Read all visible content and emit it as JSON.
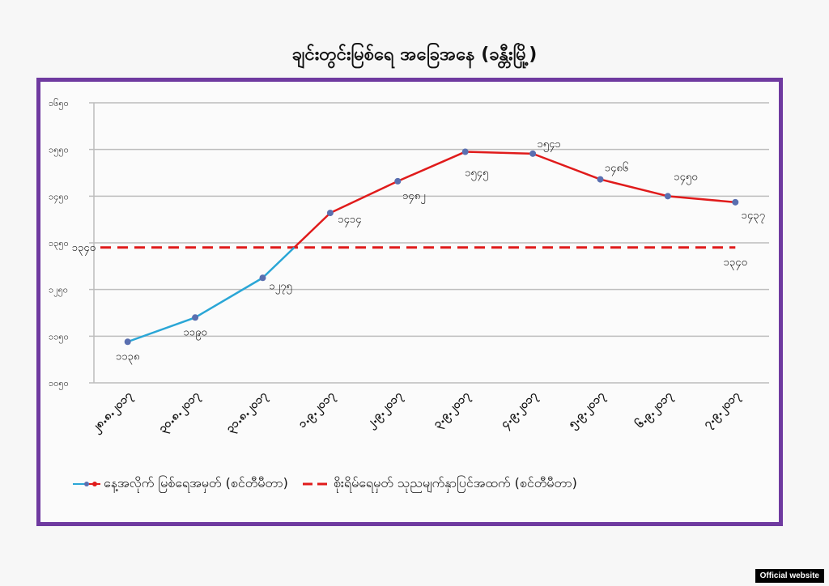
{
  "title": "ချင်းတွင်းမြစ်ရေ အခြေအနေ (ခန္တီးမြို့)",
  "colors": {
    "frame": "#6f3aa0",
    "series_below": "#2aa6d6",
    "series_above": "#e01b1b",
    "marker": "#5a6fb0",
    "threshold": "#e01b1b",
    "grid": "#bdbdbd"
  },
  "chart_data": {
    "type": "line",
    "title": "ချင်းတွင်းမြစ်ရေ အခြေအနေ (ခန္တီးမြို့)",
    "xlabel": "",
    "ylabel": "",
    "ylim": [
      1050,
      1650
    ],
    "yticks": [
      1050,
      1150,
      1250,
      1350,
      1450,
      1550,
      1650
    ],
    "ytick_labels": [
      "၁၀၅၀",
      "၁၁၅၀",
      "၁၂၅၀",
      "၁၃၅၀",
      "၁၄၅၀",
      "၁၅၅၀",
      "၁၆၅၀"
    ],
    "grid": true,
    "legend_position": "bottom",
    "categories": [
      "28.8.2017",
      "30.8.2017",
      "31.8.2017",
      "1.9.2017",
      "2.9.2017",
      "3.9.2017",
      "4.9.2017",
      "5.9.2017",
      "6.9.2017",
      "7.9.2017"
    ],
    "category_labels": [
      "၂၈.၈.၂၀၁၇",
      "၃၀.၈.၂၀၁၇",
      "၃၁.၈.၂၀၁၇",
      "၁.၉.၂၀၁၇",
      "၂.၉.၂၀၁၇",
      "၃.၉.၂၀၁၇",
      "၄.၉.၂၀၁၇",
      "၅.၉.၂၀၁၇",
      "၆.၉.၂၀၁၇",
      "၇.၉.၂၀၁၇"
    ],
    "series": [
      {
        "name": "နေ့အလိုက် မြစ်ရေအမှတ် (စင်တီမီတာ)",
        "style": "solid",
        "values": [
          1138,
          1190,
          1275,
          1414,
          1482,
          1545,
          1541,
          1486,
          1450,
          1437
        ],
        "value_labels": [
          "၁၁၃၈",
          "၁၁၉၀",
          "၁၂၇၅",
          "၁၄၁၄",
          "၁၄၈၂",
          "၁၅၄၅",
          "၁၅၄၁",
          "၁၄၈၆",
          "၁၄၅၀",
          "၁၄၃၇"
        ]
      },
      {
        "name": "စိုးရိမ်ရေမှတ် သုညမျက်နှာပြင်အထက် (စင်တီမီတာ)",
        "style": "dashed",
        "values": [
          1340,
          1340,
          1340,
          1340,
          1340,
          1340,
          1340,
          1340,
          1340,
          1340
        ],
        "value_labels": [
          "၁၃၄၀",
          "",
          "",
          "",
          "",
          "",
          "",
          "",
          "",
          "၁၃၄၀"
        ]
      }
    ]
  },
  "legend": {
    "items": [
      {
        "label": "နေ့အလိုက် မြစ်ရေအမှတ် (စင်တီမီတာ)"
      },
      {
        "label": "စိုးရိမ်ရေမှတ် သုညမျက်နှာပြင်အထက် (စင်တီမီတာ)"
      }
    ]
  },
  "badge": {
    "label": "Official website"
  }
}
